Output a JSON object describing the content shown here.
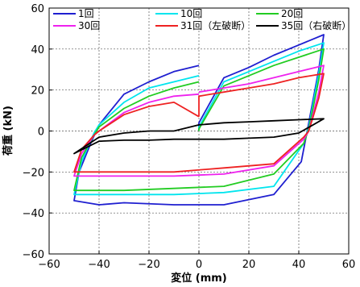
{
  "chart_data": {
    "type": "line",
    "title": "",
    "xlabel": "変位 (mm)",
    "ylabel": "荷重 (kN)",
    "xlim": [
      -60,
      60
    ],
    "ylim": [
      -60,
      60
    ],
    "xticks": [
      -60,
      -40,
      -20,
      0,
      20,
      40,
      60
    ],
    "yticks": [
      -60,
      -40,
      -20,
      0,
      20,
      40,
      60
    ],
    "grid": true,
    "legend_position": "top",
    "series": [
      {
        "name": "1回",
        "color": "#1f1fd0",
        "points": [
          [
            0,
            0
          ],
          [
            0,
            4
          ],
          [
            10,
            26
          ],
          [
            20,
            31
          ],
          [
            30,
            37
          ],
          [
            40,
            42
          ],
          [
            50,
            47
          ],
          [
            48,
            30
          ],
          [
            44,
            4
          ],
          [
            41,
            -15
          ],
          [
            30,
            -31
          ],
          [
            10,
            -36
          ],
          [
            -10,
            -36
          ],
          [
            -30,
            -35
          ],
          [
            -40,
            -36
          ],
          [
            -50,
            -34
          ],
          [
            -48,
            -20
          ],
          [
            -43,
            -5
          ],
          [
            -40,
            3
          ],
          [
            -30,
            18
          ],
          [
            -20,
            24
          ],
          [
            -10,
            29
          ],
          [
            0,
            32
          ]
        ]
      },
      {
        "name": "10回",
        "color": "#00e5ee",
        "points": [
          [
            0,
            0
          ],
          [
            0,
            2
          ],
          [
            10,
            24
          ],
          [
            20,
            29
          ],
          [
            30,
            34
          ],
          [
            40,
            39
          ],
          [
            50,
            43
          ],
          [
            48,
            28
          ],
          [
            44,
            2
          ],
          [
            42,
            -6
          ],
          [
            30,
            -27
          ],
          [
            10,
            -30
          ],
          [
            -10,
            -31
          ],
          [
            -30,
            -31
          ],
          [
            -40,
            -31
          ],
          [
            -50,
            -31
          ],
          [
            -47,
            -15
          ],
          [
            -42,
            -1
          ],
          [
            -40,
            3
          ],
          [
            -30,
            14
          ],
          [
            -20,
            21
          ],
          [
            -10,
            24
          ],
          [
            0,
            27
          ]
        ]
      },
      {
        "name": "20回",
        "color": "#22cc22",
        "points": [
          [
            0,
            0
          ],
          [
            0,
            1
          ],
          [
            10,
            22
          ],
          [
            20,
            27
          ],
          [
            30,
            32
          ],
          [
            40,
            36
          ],
          [
            50,
            40
          ],
          [
            48,
            25
          ],
          [
            44,
            1
          ],
          [
            42,
            -6
          ],
          [
            30,
            -21
          ],
          [
            10,
            -27
          ],
          [
            -10,
            -28
          ],
          [
            -30,
            -29
          ],
          [
            -40,
            -29
          ],
          [
            -50,
            -29
          ],
          [
            -47,
            -13
          ],
          [
            -42,
            -2
          ],
          [
            -40,
            2
          ],
          [
            -30,
            11
          ],
          [
            -20,
            17
          ],
          [
            -10,
            21
          ],
          [
            0,
            24
          ]
        ]
      },
      {
        "name": "30回",
        "color": "#ee22ee",
        "points": [
          [
            0,
            19
          ],
          [
            10,
            21
          ],
          [
            20,
            23
          ],
          [
            30,
            26
          ],
          [
            40,
            29
          ],
          [
            50,
            32
          ],
          [
            48,
            19
          ],
          [
            44,
            0
          ],
          [
            42,
            -4
          ],
          [
            30,
            -17
          ],
          [
            10,
            -21
          ],
          [
            -10,
            -22
          ],
          [
            -30,
            -22
          ],
          [
            -40,
            -22
          ],
          [
            -50,
            -22
          ],
          [
            -47,
            -11
          ],
          [
            -42,
            -2
          ],
          [
            -40,
            0
          ],
          [
            -30,
            9
          ],
          [
            -20,
            14
          ],
          [
            -10,
            17
          ],
          [
            0,
            18
          ]
        ]
      },
      {
        "name": "31回（左破断）",
        "color": "#ee2222",
        "points": [
          [
            0,
            7
          ],
          [
            0,
            17
          ],
          [
            10,
            19
          ],
          [
            20,
            21
          ],
          [
            30,
            23
          ],
          [
            40,
            26
          ],
          [
            50,
            28
          ],
          [
            48,
            16
          ],
          [
            44,
            0
          ],
          [
            42,
            -3
          ],
          [
            30,
            -16
          ],
          [
            10,
            -18
          ],
          [
            -10,
            -20
          ],
          [
            -30,
            -20
          ],
          [
            -40,
            -20
          ],
          [
            -50,
            -20
          ],
          [
            -47,
            -9
          ],
          [
            -42,
            -2
          ],
          [
            -40,
            0
          ],
          [
            -30,
            8
          ],
          [
            -20,
            12
          ],
          [
            -10,
            14
          ],
          [
            0,
            7
          ]
        ]
      },
      {
        "name": "35回（右破断）",
        "color": "#000000",
        "points": [
          [
            -10,
            0
          ],
          [
            0,
            3
          ],
          [
            10,
            4
          ],
          [
            20,
            4.5
          ],
          [
            30,
            5
          ],
          [
            40,
            5.5
          ],
          [
            50,
            6
          ],
          [
            40,
            -1
          ],
          [
            30,
            -3
          ],
          [
            20,
            -3.5
          ],
          [
            10,
            -4
          ],
          [
            0,
            -4
          ],
          [
            -10,
            -4
          ],
          [
            -20,
            -4.5
          ],
          [
            -30,
            -4.5
          ],
          [
            -40,
            -5
          ],
          [
            -50,
            -11
          ],
          [
            -40,
            -3
          ],
          [
            -30,
            -1
          ],
          [
            -20,
            0
          ],
          [
            -10,
            0
          ]
        ]
      }
    ]
  }
}
